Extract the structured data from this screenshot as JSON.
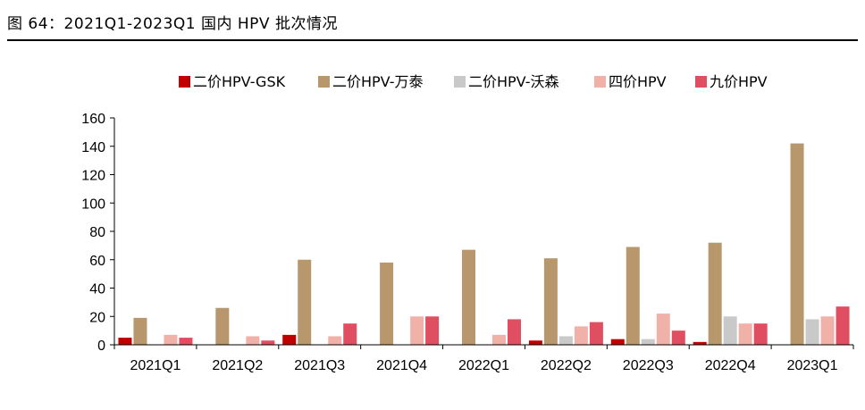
{
  "figure_title": "图 64：2021Q1-2023Q1 国内 HPV 批次情况",
  "chart_data": {
    "type": "bar",
    "title": "",
    "xlabel": "",
    "ylabel": "",
    "ylim": [
      0,
      160
    ],
    "yticks": [
      0,
      20,
      40,
      60,
      80,
      100,
      120,
      140,
      160
    ],
    "grid": false,
    "legend_position": "top",
    "categories": [
      "2021Q1",
      "2021Q2",
      "2021Q3",
      "2021Q4",
      "2022Q1",
      "2022Q2",
      "2022Q3",
      "2022Q4",
      "2023Q1"
    ],
    "series": [
      {
        "name": "二价HPV-GSK",
        "color": "#C00000",
        "values": [
          5,
          0,
          7,
          0,
          0,
          3,
          4,
          2,
          0
        ]
      },
      {
        "name": "二价HPV-万泰",
        "color": "#B8976D",
        "values": [
          19,
          26,
          60,
          58,
          67,
          61,
          69,
          72,
          142
        ]
      },
      {
        "name": "二价HPV-沃森",
        "color": "#C9C9C9",
        "values": [
          0,
          0,
          0,
          0,
          0,
          6,
          4,
          20,
          18
        ]
      },
      {
        "name": "四价HPV",
        "color": "#F0B2A8",
        "values": [
          7,
          6,
          6,
          20,
          7,
          13,
          22,
          15,
          20
        ]
      },
      {
        "name": "九价HPV",
        "color": "#E04E61",
        "values": [
          5,
          3,
          15,
          20,
          18,
          16,
          10,
          15,
          27
        ]
      }
    ]
  }
}
